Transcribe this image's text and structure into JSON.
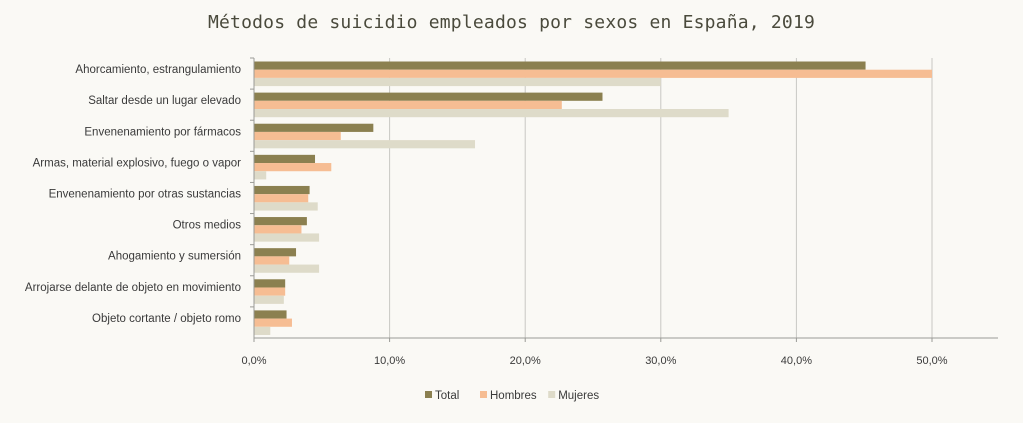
{
  "chart_data": {
    "type": "bar",
    "orientation": "horizontal",
    "title": "Métodos de suicidio empleados por sexos en España, 2019",
    "xlabel": "",
    "ylabel": "",
    "xlim": [
      0,
      55
    ],
    "x_ticks": [
      0,
      10,
      20,
      30,
      40,
      50
    ],
    "x_tick_labels": [
      "0,0%",
      "10,0%",
      "20,0%",
      "30,0%",
      "40,0%",
      "50,0%"
    ],
    "grid": "vertical",
    "legend_position": "bottom",
    "categories": [
      "Ahorcamiento, estrangulamiento",
      "Saltar desde un lugar elevado",
      "Envenenamiento por fármacos",
      "Armas, material explosivo, fuego o vapor",
      "Envenenamiento por otras sustancias",
      "Otros medios",
      "Ahogamiento y sumersión",
      "Arrojarse delante de objeto en movimiento",
      "Objeto cortante / objeto romo"
    ],
    "series": [
      {
        "name": "Total",
        "color": "#8b8050",
        "values": [
          45.1,
          25.7,
          8.8,
          4.5,
          4.1,
          3.9,
          3.1,
          2.3,
          2.4
        ]
      },
      {
        "name": "Hombres",
        "color": "#f6bd93",
        "values": [
          50.0,
          22.7,
          6.4,
          5.7,
          4.0,
          3.5,
          2.6,
          2.3,
          2.8
        ]
      },
      {
        "name": "Mujeres",
        "color": "#dedbc9",
        "values": [
          30.0,
          35.0,
          16.3,
          0.9,
          4.7,
          4.8,
          4.8,
          2.2,
          1.2
        ]
      }
    ]
  }
}
